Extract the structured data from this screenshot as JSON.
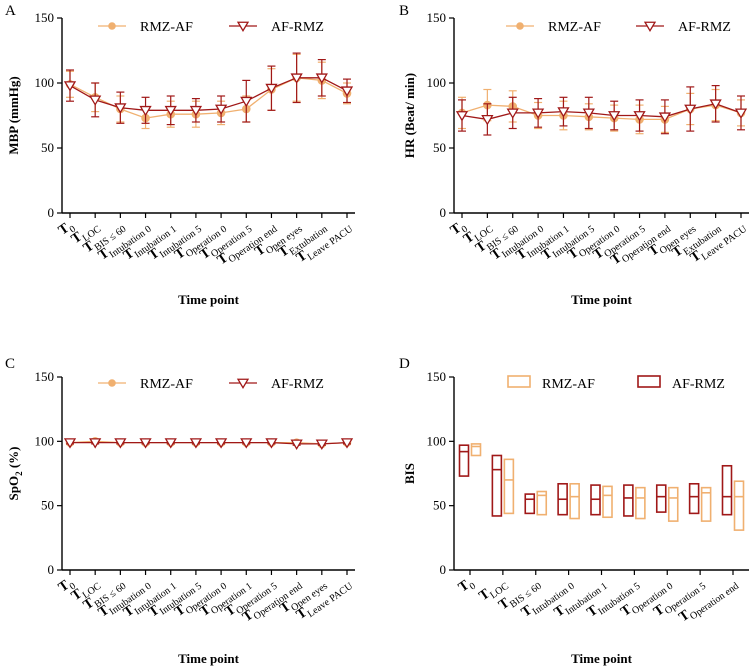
{
  "colors": {
    "rmz_af": "#f0b070",
    "af_rmz": "#a01818",
    "axis": "#000000"
  },
  "chart_data": [
    {
      "panel": "A",
      "type": "line",
      "ylabel": "MBP (mmHg)",
      "xlabel": "Time point",
      "ylim": [
        0,
        150
      ],
      "yticks": [
        0,
        50,
        100,
        150
      ],
      "categories": [
        {
          "main": "T",
          "sub": "0"
        },
        {
          "main": "T",
          "sub": "LOC"
        },
        {
          "main": "T",
          "sub": "BIS ≤ 60"
        },
        {
          "main": "T",
          "sub": "Intubation 0"
        },
        {
          "main": "T",
          "sub": "Intubation 1"
        },
        {
          "main": "T",
          "sub": "Intubation 5"
        },
        {
          "main": "T",
          "sub": "Operation 0"
        },
        {
          "main": "T",
          "sub": "Operation 5"
        },
        {
          "main": "T",
          "sub": "Operation end"
        },
        {
          "main": "T",
          "sub": "Open eyes"
        },
        {
          "main": "T",
          "sub": "Extubation"
        },
        {
          "main": "T",
          "sub": "Leave PACU"
        }
      ],
      "series": [
        {
          "name": "RMZ-AF",
          "marker": "circle",
          "values": [
            99,
            89,
            80,
            73,
            76,
            76,
            77,
            80,
            95,
            104,
            102,
            92
          ],
          "errors": [
            10,
            11,
            10,
            8,
            10,
            10,
            9,
            10,
            16,
            18,
            14,
            8
          ]
        },
        {
          "name": "AF-RMZ",
          "marker": "triangle-down",
          "values": [
            98,
            87,
            81,
            79,
            79,
            79,
            80,
            86,
            96,
            104,
            104,
            94
          ],
          "errors": [
            12,
            13,
            12,
            10,
            11,
            9,
            10,
            16,
            17,
            19,
            14,
            9
          ]
        }
      ]
    },
    {
      "panel": "B",
      "type": "line",
      "ylabel": "HR (Beat/ min)",
      "xlabel": "Time point",
      "ylim": [
        0,
        150
      ],
      "yticks": [
        0,
        50,
        100,
        150
      ],
      "categories": [
        {
          "main": "T",
          "sub": "0"
        },
        {
          "main": "T",
          "sub": "LOC"
        },
        {
          "main": "T",
          "sub": "BIS ≤ 60"
        },
        {
          "main": "T",
          "sub": "Intubation 0"
        },
        {
          "main": "T",
          "sub": "Intubation 1"
        },
        {
          "main": "T",
          "sub": "Intubation 5"
        },
        {
          "main": "T",
          "sub": "Operation 0"
        },
        {
          "main": "T",
          "sub": "Operation 5"
        },
        {
          "main": "T",
          "sub": "Operation end"
        },
        {
          "main": "T",
          "sub": "Open eyes"
        },
        {
          "main": "T",
          "sub": "Extubation"
        },
        {
          "main": "T",
          "sub": "Leave PACU"
        }
      ],
      "series": [
        {
          "name": "RMZ-AF",
          "marker": "circle",
          "values": [
            77,
            83,
            82,
            75,
            75,
            74,
            73,
            72,
            72,
            80,
            83,
            77
          ],
          "errors": [
            12,
            12,
            12,
            10,
            11,
            10,
            10,
            11,
            10,
            12,
            12,
            10
          ]
        },
        {
          "name": "AF-RMZ",
          "marker": "triangle-down",
          "values": [
            75,
            72,
            77,
            77,
            78,
            77,
            75,
            75,
            74,
            80,
            84,
            77
          ],
          "errors": [
            12,
            12,
            12,
            11,
            11,
            12,
            11,
            12,
            13,
            17,
            14,
            13
          ]
        }
      ]
    },
    {
      "panel": "C",
      "type": "line",
      "ylabel": "SpO",
      "ylabel_sub": "2",
      "ylabel_tail": " (%)",
      "xlabel": "Time point",
      "ylim": [
        0,
        150
      ],
      "yticks": [
        0,
        50,
        100,
        150
      ],
      "categories": [
        {
          "main": "T",
          "sub": "0"
        },
        {
          "main": "T",
          "sub": "LOC"
        },
        {
          "main": "T",
          "sub": "BIS ≤ 60"
        },
        {
          "main": "T",
          "sub": "Intubation 0"
        },
        {
          "main": "T",
          "sub": "Intubation 1"
        },
        {
          "main": "T",
          "sub": "Intubation 5"
        },
        {
          "main": "T",
          "sub": "Operation 0"
        },
        {
          "main": "T",
          "sub": "Operation 1"
        },
        {
          "main": "T",
          "sub": "Operation 5"
        },
        {
          "main": "T",
          "sub": "Operation end"
        },
        {
          "main": "T",
          "sub": "Open eyes"
        },
        {
          "main": "T",
          "sub": "Leave PACU"
        }
      ],
      "series": [
        {
          "name": "RMZ-AF",
          "marker": "circle",
          "values": [
            99,
            100,
            99,
            99,
            99,
            99,
            99,
            99,
            99,
            99,
            98,
            99
          ],
          "errors": [
            1,
            1,
            1,
            1,
            1,
            1,
            1,
            1,
            1,
            1,
            1,
            1
          ]
        },
        {
          "name": "AF-RMZ",
          "marker": "triangle-down",
          "values": [
            99,
            99,
            99,
            99,
            99,
            99,
            99,
            99,
            99,
            98,
            98,
            99
          ],
          "errors": [
            1,
            1,
            1,
            1,
            1,
            1,
            1,
            1,
            1,
            1,
            1,
            1
          ]
        }
      ]
    },
    {
      "panel": "D",
      "type": "floating-bar",
      "ylabel": "BIS",
      "xlabel": "Time point",
      "ylim": [
        0,
        150
      ],
      "yticks": [
        0,
        50,
        100,
        150
      ],
      "categories": [
        {
          "main": "T",
          "sub": "0"
        },
        {
          "main": "T",
          "sub": "LOC"
        },
        {
          "main": "T",
          "sub": "BIS ≤ 60"
        },
        {
          "main": "T",
          "sub": "Intubation 0"
        },
        {
          "main": "T",
          "sub": "Intubation 1"
        },
        {
          "main": "T",
          "sub": "Intubation 5"
        },
        {
          "main": "T",
          "sub": "Operation 0"
        },
        {
          "main": "T",
          "sub": "Operation 5"
        },
        {
          "main": "T",
          "sub": "Operation end"
        }
      ],
      "series": [
        {
          "name": "AF-RMZ",
          "min": [
            73,
            42,
            44,
            43,
            43,
            42,
            45,
            44,
            43
          ],
          "max": [
            97,
            89,
            59,
            67,
            66,
            66,
            66,
            67,
            81
          ],
          "median": [
            92,
            78,
            55,
            55,
            55,
            56,
            57,
            57,
            57
          ]
        },
        {
          "name": "RMZ-AF",
          "min": [
            89,
            44,
            43,
            40,
            41,
            40,
            38,
            38,
            31
          ],
          "max": [
            98,
            86,
            61,
            67,
            65,
            64,
            64,
            64,
            69
          ],
          "median": [
            96,
            70,
            58,
            57,
            58,
            56,
            56,
            60,
            57
          ]
        }
      ]
    }
  ]
}
